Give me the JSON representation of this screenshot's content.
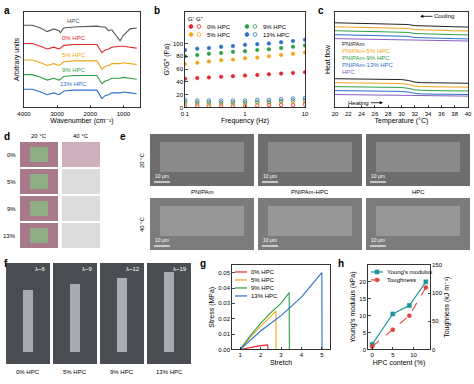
{
  "chart_data": [
    {
      "label": "a",
      "type": "line",
      "x_label": "Wavenumber (cm⁻¹)",
      "y_label": "Arbitrary units",
      "x": [
        4000,
        3750,
        3500,
        3300,
        3100,
        2950,
        2900,
        2800,
        2500,
        2000,
        1800,
        1650,
        1550,
        1450,
        1350,
        1100,
        1000,
        800,
        600
      ],
      "xlim": [
        4000,
        500
      ],
      "xticks": [
        4000,
        3000,
        2000,
        1000
      ],
      "ylim": [
        0,
        10.5
      ],
      "tick_labels": "x",
      "series": [
        {
          "name": "HPC",
          "color": "#555555",
          "values": [
            9.0,
            9.0,
            8.7,
            8.3,
            8.6,
            8.4,
            8.2,
            8.7,
            8.8,
            8.9,
            8.9,
            8.8,
            8.8,
            8.4,
            8.5,
            7.3,
            7.9,
            8.6,
            8.7
          ]
        },
        {
          "name": "0% HPC",
          "color": "#e3262b",
          "values": [
            7.0,
            7.0,
            6.7,
            6.4,
            6.6,
            6.4,
            6.5,
            6.8,
            6.9,
            6.9,
            6.9,
            6.0,
            6.3,
            6.4,
            6.6,
            6.7,
            6.7,
            6.6,
            6.5
          ]
        },
        {
          "name": "5% HPC",
          "color": "#f2a51a",
          "values": [
            5.2,
            5.2,
            4.9,
            4.6,
            4.8,
            4.6,
            4.7,
            5.0,
            5.1,
            5.1,
            5.1,
            4.2,
            4.5,
            4.6,
            4.8,
            4.8,
            4.9,
            4.8,
            4.7
          ]
        },
        {
          "name": "9% HPC",
          "color": "#2e9e48",
          "values": [
            3.6,
            3.6,
            3.3,
            3.0,
            3.2,
            3.0,
            3.1,
            3.4,
            3.5,
            3.5,
            3.5,
            2.6,
            2.9,
            3.0,
            3.2,
            3.2,
            3.3,
            3.2,
            3.1
          ]
        },
        {
          "name": "13% HPC",
          "color": "#2a6fc9",
          "values": [
            2.0,
            2.0,
            1.7,
            1.4,
            1.6,
            1.4,
            1.5,
            1.8,
            1.9,
            1.9,
            1.9,
            1.0,
            1.3,
            1.4,
            1.6,
            1.6,
            1.7,
            1.6,
            1.5
          ]
        }
      ]
    },
    {
      "label": "b",
      "type": "scatter",
      "log": "x",
      "marker": "circle",
      "x_label": "Frequency (Hz)",
      "y_label": "G'/G'' (Pa)",
      "x": [
        0.1,
        0.16,
        0.25,
        0.4,
        0.63,
        1,
        1.6,
        2.5,
        4,
        6.3,
        10
      ],
      "xlim": [
        0.1,
        10
      ],
      "xticks": [
        0.1,
        1,
        10
      ],
      "ylim": [
        0,
        150
      ],
      "yticks": [
        0,
        20,
        40,
        60,
        80,
        100
      ],
      "legend": "upper left",
      "legend_header": [
        "G'",
        "G''"
      ],
      "series": [
        {
          "name": "0% HPC",
          "color": "#e3262b",
          "values": [
            45,
            46,
            47,
            48,
            49,
            50,
            51,
            52,
            53,
            54,
            55
          ],
          "loss_values": [
            3,
            3,
            3,
            3,
            3,
            3,
            3,
            4,
            4,
            4,
            5
          ]
        },
        {
          "name": "5% HPC",
          "color": "#f2a51a",
          "values": [
            68,
            70,
            72,
            74,
            75,
            77,
            78,
            80,
            82,
            84,
            86
          ],
          "loss_values": [
            6,
            6,
            6,
            6,
            6,
            6,
            7,
            7,
            8,
            8,
            9
          ]
        },
        {
          "name": "9% HPC",
          "color": "#2e9e48",
          "values": [
            80,
            82,
            84,
            85,
            87,
            88,
            90,
            91,
            93,
            95,
            97
          ],
          "loss_values": [
            9,
            8,
            8,
            8,
            8,
            8,
            9,
            9,
            10,
            11,
            12
          ]
        },
        {
          "name": "13% HPC",
          "color": "#2a6fc9",
          "values": [
            90,
            92,
            93,
            95,
            96,
            98,
            99,
            100,
            102,
            104,
            106
          ],
          "loss_values": [
            12,
            11,
            11,
            11,
            11,
            11,
            12,
            12,
            13,
            14,
            15
          ]
        }
      ]
    },
    {
      "label": "c",
      "type": "line",
      "x_label": "Temperature (°C)",
      "y_label": "Heat flow",
      "x": [
        20,
        22,
        24,
        26,
        28,
        30,
        31,
        32,
        33,
        34,
        36,
        38,
        40
      ],
      "xlim": [
        20,
        40
      ],
      "xticks": [
        20,
        22,
        24,
        26,
        28,
        30,
        32,
        34,
        36,
        38,
        40
      ],
      "ylim": [
        -1.5,
        15.5
      ],
      "tick_labels": "x",
      "annotations": [
        "Heating",
        "Cooling"
      ],
      "series": [
        {
          "name": "PNIPAm",
          "color": "#222222",
          "heating": [
            3.6,
            3.58,
            3.55,
            3.52,
            3.5,
            3.45,
            3.3,
            3.0,
            2.9,
            2.88,
            2.85,
            2.83,
            2.8
          ],
          "cooling": [
            13.5,
            13.45,
            13.4,
            13.35,
            13.3,
            13.25,
            13.2,
            13.0,
            12.95,
            12.9,
            12.85,
            12.8,
            12.75
          ]
        },
        {
          "name": "PNIPAm-5% HPC",
          "color": "#f2a51a",
          "heating": [
            2.9,
            2.88,
            2.85,
            2.82,
            2.8,
            2.75,
            2.6,
            2.3,
            2.2,
            2.18,
            2.15,
            2.13,
            2.1
          ],
          "cooling": [
            12.8,
            12.75,
            12.7,
            12.65,
            12.6,
            12.55,
            12.5,
            12.3,
            12.25,
            12.2,
            12.15,
            12.1,
            12.05
          ]
        },
        {
          "name": "PNIPAm-9% HPC",
          "color": "#2e9e48",
          "heating": [
            2.2,
            2.18,
            2.15,
            2.12,
            2.1,
            2.05,
            1.9,
            1.65,
            1.55,
            1.5,
            1.48,
            1.45,
            1.43
          ],
          "cooling": [
            12.1,
            12.05,
            12.0,
            11.95,
            11.9,
            11.85,
            11.8,
            11.6,
            11.55,
            11.5,
            11.45,
            11.4,
            11.35
          ]
        },
        {
          "name": "PNIPAm-13% HPC",
          "color": "#2a6fc9",
          "heating": [
            1.5,
            1.48,
            1.45,
            1.42,
            1.4,
            1.35,
            1.25,
            1.0,
            0.9,
            0.88,
            0.85,
            0.83,
            0.8
          ],
          "cooling": [
            11.4,
            11.35,
            11.3,
            11.25,
            11.2,
            11.15,
            11.1,
            10.9,
            10.85,
            10.8,
            10.75,
            10.7,
            10.65
          ]
        },
        {
          "name": "HPC",
          "color": "#8b5fbf",
          "heating": [
            0.8,
            0.78,
            0.75,
            0.73,
            0.7,
            0.68,
            0.65,
            0.62,
            0.6,
            0.58,
            0.56,
            0.54,
            0.52
          ],
          "cooling": [
            10.7,
            10.65,
            10.6,
            10.55,
            10.5,
            10.45,
            10.42,
            10.4,
            10.38,
            10.35,
            10.32,
            10.3,
            10.28
          ]
        }
      ]
    },
    {
      "label": "g",
      "type": "line",
      "x_label": "Stretch",
      "y_label": "Stress (MPa)",
      "xlim": [
        0.6,
        5.4
      ],
      "xticks": [
        1,
        2,
        3,
        4,
        5
      ],
      "ylim": [
        0,
        0.055
      ],
      "yticks": [
        {
          "value": 0,
          "label": "0.00"
        },
        0.01,
        0.02,
        0.03,
        0.04,
        0.05
      ],
      "legend": "upper left",
      "series": [
        {
          "name": "0% HPC",
          "color": "#e3262b",
          "x": [
            1,
            1.5,
            2.0,
            2.35,
            2.36
          ],
          "values": [
            0,
            0.0015,
            0.0025,
            0.003,
            0
          ]
        },
        {
          "name": "5% HPC",
          "color": "#f2a51a",
          "x": [
            1,
            1.5,
            2,
            2.5,
            2.75,
            2.76
          ],
          "values": [
            0,
            0.008,
            0.015,
            0.022,
            0.025,
            0
          ]
        },
        {
          "name": "9% HPC",
          "color": "#2e9e48",
          "x": [
            1,
            1.5,
            2,
            2.5,
            3,
            3.4,
            3.41
          ],
          "values": [
            0,
            0.009,
            0.017,
            0.024,
            0.03,
            0.037,
            0
          ]
        },
        {
          "name": "13% HPC",
          "color": "#2a6fc9",
          "x": [
            1,
            2,
            3,
            4,
            5,
            5.01
          ],
          "values": [
            0,
            0.012,
            0.022,
            0.034,
            0.05,
            0
          ]
        }
      ]
    },
    {
      "label": "h",
      "type": "line",
      "x_label": "HPC content (%)",
      "y_label": "Young's modulus (kPa)",
      "y2_label": "Toughness (kJ m⁻³)",
      "x": [
        0,
        5,
        9,
        13
      ],
      "xlim": [
        -1,
        14
      ],
      "xticks": [
        0,
        5,
        10
      ],
      "ylim": [
        0,
        25
      ],
      "yticks": [
        0,
        5,
        10,
        15,
        20
      ],
      "y2lim": [
        0,
        150
      ],
      "y2ticks": [
        0,
        50,
        100,
        150
      ],
      "legend": "upper left",
      "series": [
        {
          "name": "Young's modulus",
          "color": "#20939b",
          "marker": "square",
          "line_style": "solid",
          "values": [
            1.5,
            10.5,
            13,
            20
          ]
        },
        {
          "name": "Toughness",
          "color": "#e2413a",
          "marker": "circle",
          "line_style": "dash",
          "axis": "y2",
          "values": [
            5,
            35,
            60,
            110
          ]
        }
      ]
    }
  ],
  "photos": {
    "d": {
      "label": "d",
      "columns": [
        "20 °C",
        "40 °C"
      ],
      "rows": [
        "0%",
        "5%",
        "9%",
        "13%"
      ]
    },
    "e": {
      "label": "e",
      "rows": [
        "20 °C",
        "40 °C"
      ],
      "columns": [
        "PNIPAm",
        "PNIPAm-HPC",
        "HPC"
      ],
      "scale_bar": "10 μm"
    },
    "f": {
      "label": "f",
      "captions": [
        "0% HPC",
        "5% HPC",
        "9% HPC",
        "13% HPC"
      ],
      "stretch_labels": [
        "λ~6",
        "λ~9",
        "λ~12",
        "λ~19"
      ]
    }
  }
}
